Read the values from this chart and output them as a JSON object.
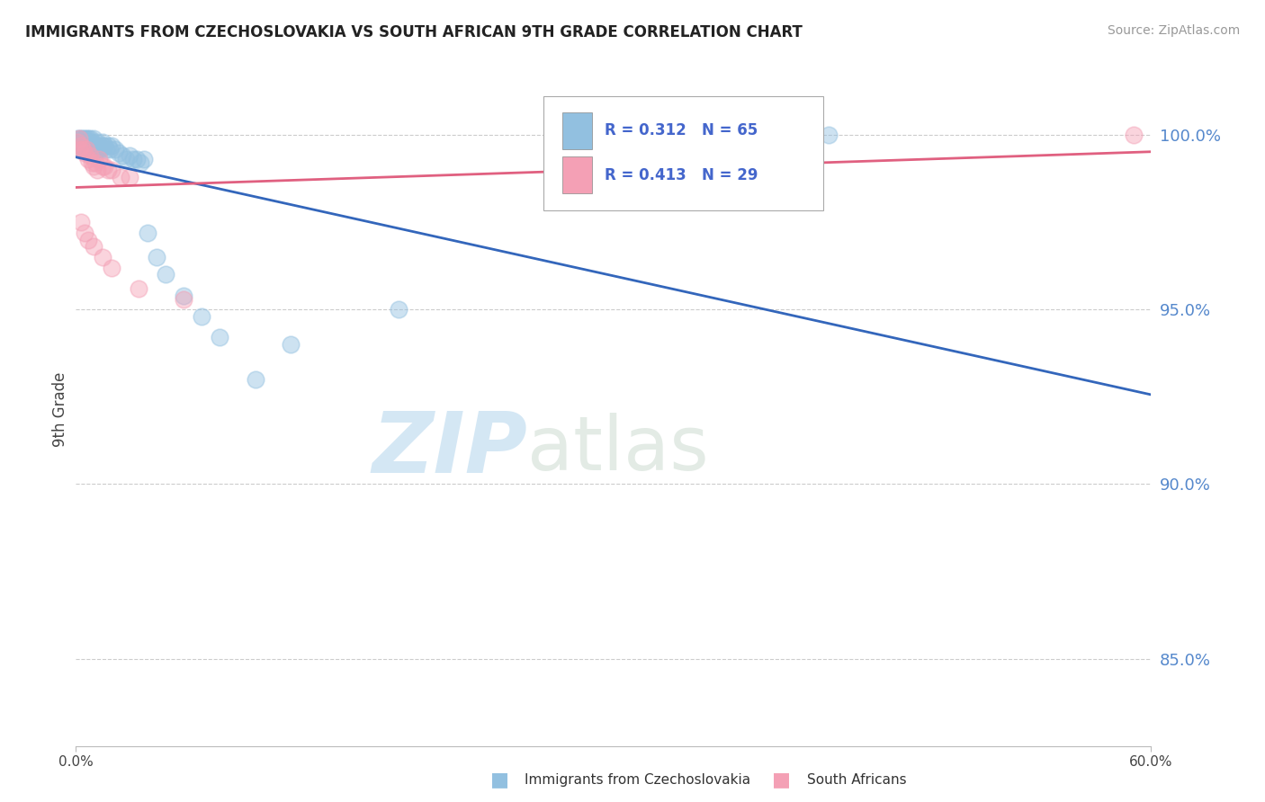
{
  "title": "IMMIGRANTS FROM CZECHOSLOVAKIA VS SOUTH AFRICAN 9TH GRADE CORRELATION CHART",
  "source": "Source: ZipAtlas.com",
  "ylabel": "9th Grade",
  "ylabel_ticks": [
    "100.0%",
    "95.0%",
    "90.0%",
    "85.0%"
  ],
  "ylabel_values": [
    1.0,
    0.95,
    0.9,
    0.85
  ],
  "xmin": 0.0,
  "xmax": 0.6,
  "ymin": 0.825,
  "ymax": 1.018,
  "legend_label1": "Immigrants from Czechoslovakia",
  "legend_label2": "South Africans",
  "R1": 0.312,
  "N1": 65,
  "R2": 0.413,
  "N2": 29,
  "blue_color": "#92c0e0",
  "pink_color": "#f4a0b5",
  "blue_line_color": "#3366bb",
  "pink_line_color": "#e06080",
  "watermark_zip": "ZIP",
  "watermark_atlas": "atlas",
  "blue_x": [
    0.001,
    0.001,
    0.002,
    0.002,
    0.002,
    0.003,
    0.003,
    0.003,
    0.004,
    0.004,
    0.004,
    0.005,
    0.005,
    0.005,
    0.005,
    0.006,
    0.006,
    0.006,
    0.006,
    0.007,
    0.007,
    0.007,
    0.007,
    0.008,
    0.008,
    0.008,
    0.008,
    0.009,
    0.009,
    0.01,
    0.01,
    0.01,
    0.011,
    0.011,
    0.012,
    0.012,
    0.013,
    0.013,
    0.014,
    0.015,
    0.015,
    0.016,
    0.017,
    0.018,
    0.019,
    0.02,
    0.022,
    0.024,
    0.026,
    0.028,
    0.03,
    0.032,
    0.034,
    0.036,
    0.038,
    0.04,
    0.045,
    0.05,
    0.06,
    0.07,
    0.08,
    0.1,
    0.12,
    0.18,
    0.42
  ],
  "blue_y": [
    0.999,
    0.997,
    0.998,
    0.996,
    0.999,
    0.997,
    0.998,
    0.999,
    0.997,
    0.998,
    0.999,
    0.997,
    0.998,
    0.996,
    0.999,
    0.996,
    0.997,
    0.998,
    0.999,
    0.997,
    0.998,
    0.996,
    0.999,
    0.997,
    0.996,
    0.998,
    0.999,
    0.997,
    0.998,
    0.996,
    0.997,
    0.999,
    0.996,
    0.997,
    0.996,
    0.998,
    0.996,
    0.997,
    0.996,
    0.997,
    0.998,
    0.997,
    0.996,
    0.997,
    0.996,
    0.997,
    0.996,
    0.995,
    0.994,
    0.993,
    0.994,
    0.993,
    0.993,
    0.992,
    0.993,
    0.972,
    0.965,
    0.96,
    0.954,
    0.948,
    0.942,
    0.93,
    0.94,
    0.95,
    1.0
  ],
  "pink_x": [
    0.001,
    0.002,
    0.002,
    0.003,
    0.004,
    0.005,
    0.006,
    0.007,
    0.008,
    0.009,
    0.01,
    0.011,
    0.012,
    0.013,
    0.015,
    0.016,
    0.018,
    0.02,
    0.025,
    0.03,
    0.003,
    0.005,
    0.007,
    0.01,
    0.015,
    0.02,
    0.035,
    0.06,
    0.59
  ],
  "pink_y": [
    0.998,
    0.996,
    0.999,
    0.997,
    0.996,
    0.995,
    0.996,
    0.993,
    0.994,
    0.992,
    0.991,
    0.992,
    0.99,
    0.993,
    0.991,
    0.991,
    0.99,
    0.99,
    0.988,
    0.988,
    0.975,
    0.972,
    0.97,
    0.968,
    0.965,
    0.962,
    0.956,
    0.953,
    1.0
  ]
}
